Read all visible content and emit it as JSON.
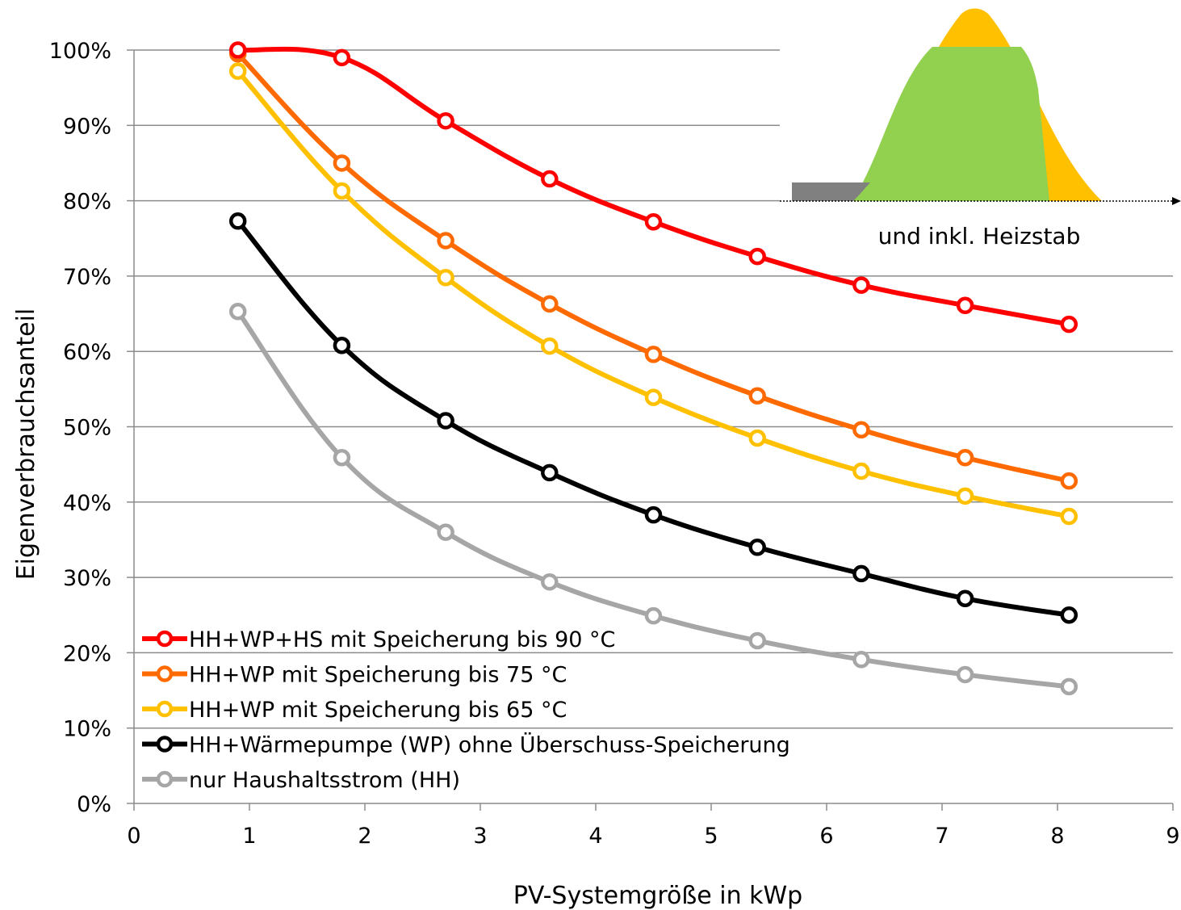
{
  "chart_data": {
    "type": "line",
    "title": "",
    "xlabel": "PV-Systemgröße in kWp",
    "ylabel": "Eigenverbrauchsanteil",
    "xlim": [
      0,
      9
    ],
    "ylim": [
      0,
      100
    ],
    "x_ticks": [
      "0",
      "1",
      "2",
      "3",
      "4",
      "5",
      "6",
      "7",
      "8",
      "9"
    ],
    "y_ticks": [
      "0%",
      "10%",
      "20%",
      "30%",
      "40%",
      "50%",
      "60%",
      "70%",
      "80%",
      "90%",
      "100%"
    ],
    "grid": "horizontal",
    "legend_position": "bottom-left",
    "x": [
      0.9,
      1.8,
      2.7,
      3.6,
      4.5,
      5.4,
      6.3,
      7.2,
      8.1
    ],
    "series": [
      {
        "name": "HH+WP+HS mit Speicherung bis 90 °C",
        "color": "#ff0000",
        "values": [
          100,
          99,
          90.6,
          82.9,
          77.2,
          72.6,
          68.8,
          66.1,
          63.6
        ]
      },
      {
        "name": "HH+WP mit Speicherung bis 75 °C",
        "color": "#ff6a00",
        "values": [
          99.5,
          85,
          74.7,
          66.3,
          59.6,
          54.1,
          49.6,
          45.9,
          42.8
        ]
      },
      {
        "name": "HH+WP mit Speicherung bis 65 °C",
        "color": "#ffc000",
        "values": [
          97.2,
          81.3,
          69.8,
          60.7,
          53.9,
          48.5,
          44.1,
          40.8,
          38.1
        ]
      },
      {
        "name": "HH+Wärmepumpe (WP) ohne Überschuss-Speicherung",
        "color": "#000000",
        "values": [
          77.3,
          60.8,
          50.8,
          43.9,
          38.3,
          34,
          30.5,
          27.2,
          25
        ]
      },
      {
        "name": "nur Haushaltsstrom (HH)",
        "color": "#a6a6a6",
        "values": [
          65.3,
          45.9,
          36,
          29.4,
          24.9,
          21.6,
          19.1,
          17.1,
          15.5
        ]
      }
    ],
    "inset": {
      "caption": "und inkl. Heizstab",
      "colors": {
        "base_load": "#808080",
        "self_consumption": "#92d050",
        "surplus": "#ffc000"
      }
    }
  }
}
